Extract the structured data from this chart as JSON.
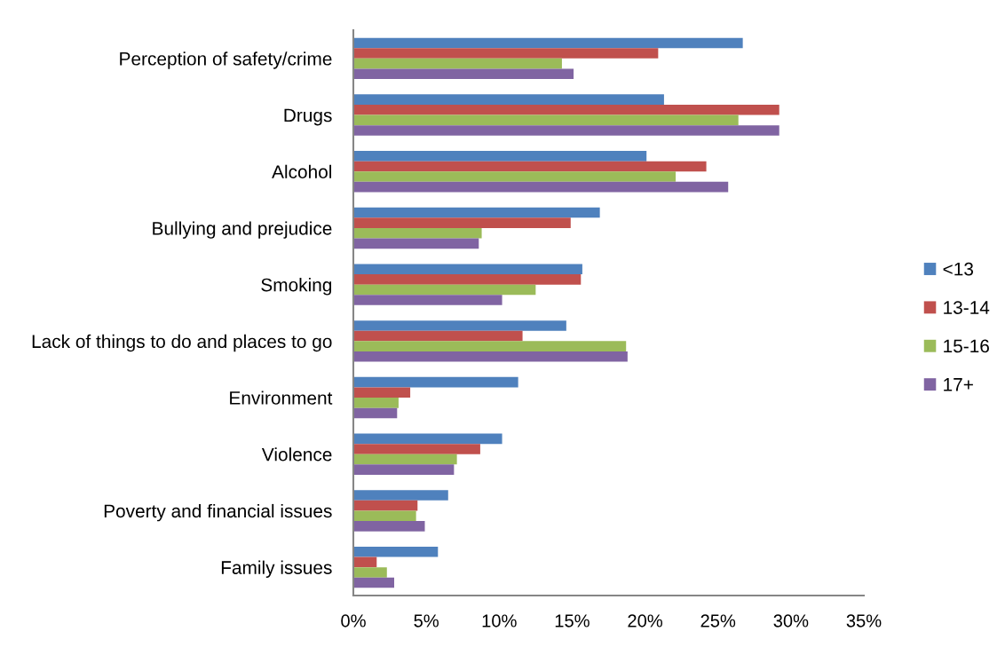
{
  "chart_data": {
    "type": "bar",
    "orientation": "horizontal",
    "categories": [
      "Perception of safety/crime",
      "Drugs",
      "Alcohol",
      "Bullying and prejudice",
      "Smoking",
      "Lack of things to do and places to go",
      "Environment",
      "Violence",
      "Poverty and financial issues",
      "Family issues"
    ],
    "series": [
      {
        "name": "<13",
        "color": "#4f81bd",
        "values": [
          26.7,
          21.3,
          20.1,
          16.9,
          15.7,
          14.6,
          11.3,
          10.2,
          6.5,
          5.8
        ]
      },
      {
        "name": "13-14",
        "color": "#c0504d",
        "values": [
          20.9,
          29.2,
          24.2,
          14.9,
          15.6,
          11.6,
          3.9,
          8.7,
          4.4,
          1.6
        ]
      },
      {
        "name": "15-16",
        "color": "#9bbb59",
        "values": [
          14.3,
          26.4,
          22.1,
          8.8,
          12.5,
          18.7,
          3.1,
          7.1,
          4.3,
          2.3
        ]
      },
      {
        "name": "17+",
        "color": "#8064a2",
        "values": [
          15.1,
          29.2,
          25.7,
          8.6,
          10.2,
          18.8,
          3.0,
          6.9,
          4.9,
          2.8
        ]
      }
    ],
    "xlim": [
      0,
      35
    ],
    "xticks": [
      {
        "value": 0,
        "label": "0%"
      },
      {
        "value": 5,
        "label": "5%"
      },
      {
        "value": 10,
        "label": "10%"
      },
      {
        "value": 15,
        "label": "15%"
      },
      {
        "value": 20,
        "label": "20%"
      },
      {
        "value": 25,
        "label": "25%"
      },
      {
        "value": 30,
        "label": "30%"
      },
      {
        "value": 35,
        "label": "35%"
      }
    ],
    "grid": false,
    "legend": "right"
  }
}
